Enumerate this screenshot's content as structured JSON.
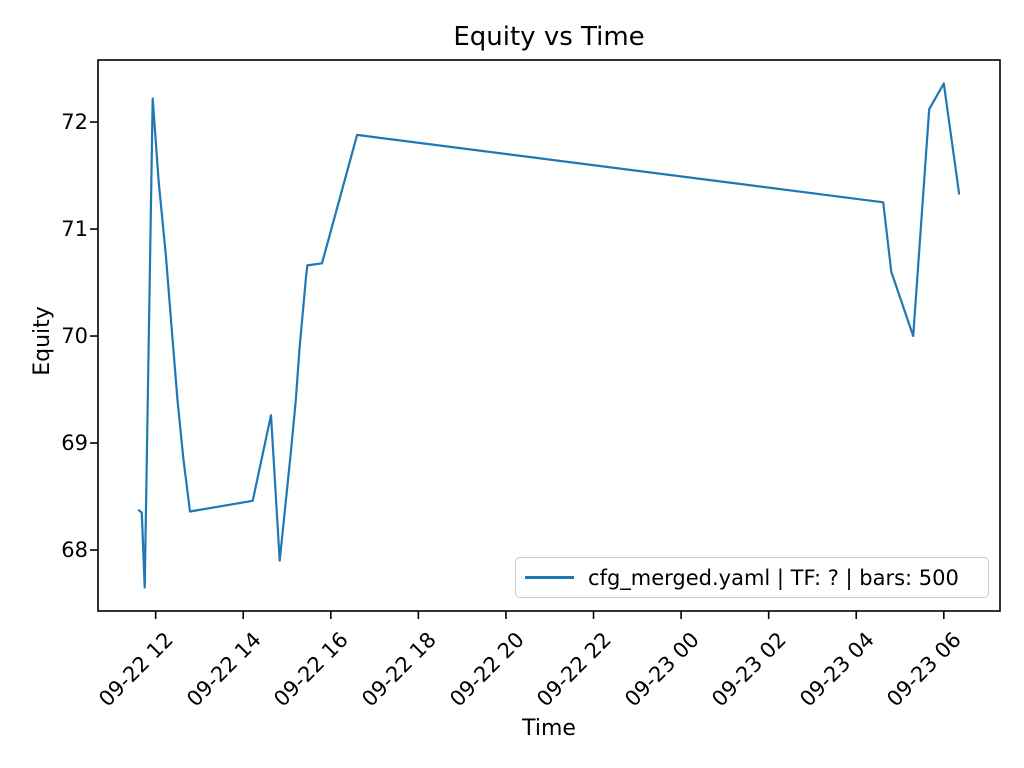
{
  "chart_data": {
    "type": "line",
    "title": "Equity vs Time",
    "xlabel": "Time",
    "ylabel": "Equity",
    "grid": false,
    "legend_position": "lower right",
    "line_color": "#1f77b4",
    "axis_color": "#000000",
    "legend_border_color": "#cccccc",
    "y_ticks": [
      68,
      69,
      70,
      71,
      72
    ],
    "x_tick_labels": [
      "09-22 12",
      "09-22 14",
      "09-22 16",
      "09-22 18",
      "09-22 20",
      "09-22 22",
      "09-23 00",
      "09-23 02",
      "09-23 04",
      "09-23 06"
    ],
    "xlim": [
      "09-22 10:41",
      "09-23 07:17"
    ],
    "ylim": [
      67.43,
      72.58
    ],
    "series": [
      {
        "name": "cfg_merged.yaml | TF: ? | bars: 500",
        "points": [
          [
            "09-22 11:37",
            68.37
          ],
          [
            "09-22 11:41",
            68.35
          ],
          [
            "09-22 11:45",
            67.65
          ],
          [
            "09-22 11:56",
            72.22
          ],
          [
            "09-22 12:04",
            71.45
          ],
          [
            "09-22 12:14",
            70.75
          ],
          [
            "09-22 12:21",
            70.15
          ],
          [
            "09-22 12:30",
            69.4
          ],
          [
            "09-22 12:38",
            68.85
          ],
          [
            "09-22 12:47",
            68.36
          ],
          [
            "09-22 14:13",
            68.46
          ],
          [
            "09-22 14:38",
            69.26
          ],
          [
            "09-22 14:50",
            67.9
          ],
          [
            "09-22 15:05",
            68.9
          ],
          [
            "09-22 15:12",
            69.4
          ],
          [
            "09-22 15:17",
            69.87
          ],
          [
            "09-22 15:26",
            70.55
          ],
          [
            "09-22 15:28",
            70.66
          ],
          [
            "09-22 15:48",
            70.68
          ],
          [
            "09-22 16:36",
            71.88
          ],
          [
            "09-23 04:37",
            71.25
          ],
          [
            "09-23 04:48",
            70.6
          ],
          [
            "09-23 05:18",
            70.0
          ],
          [
            "09-23 05:40",
            72.12
          ],
          [
            "09-23 06:00",
            72.36
          ],
          [
            "09-23 06:21",
            71.33
          ]
        ]
      }
    ]
  }
}
